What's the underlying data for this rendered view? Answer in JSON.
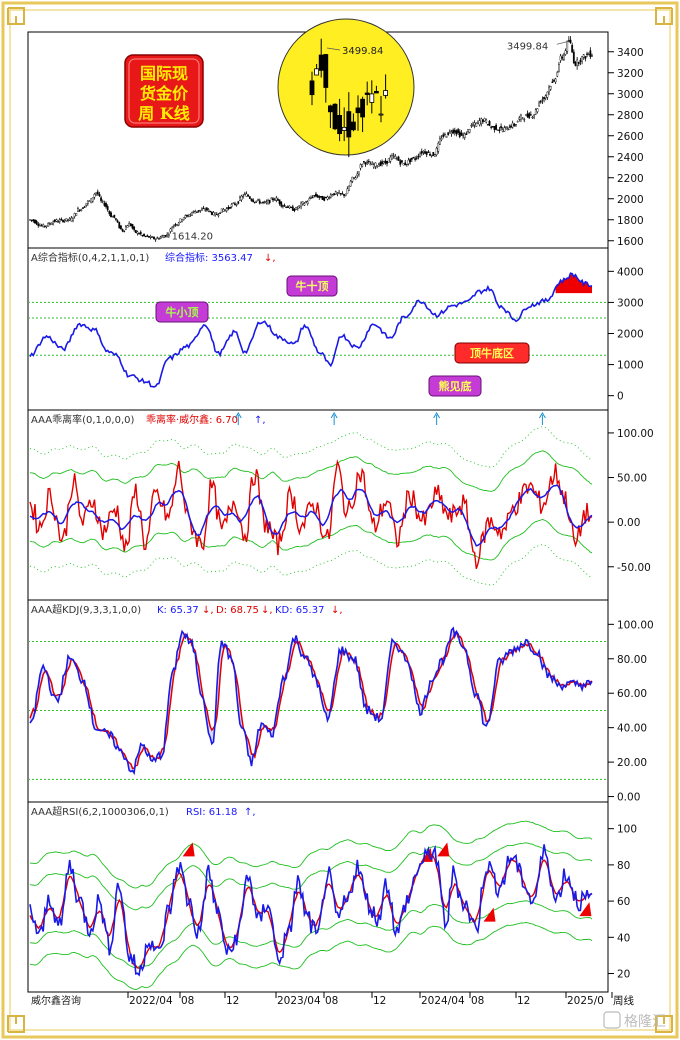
{
  "chart_data": [
    {
      "type": "candlestick",
      "badge": [
        "国际现",
        "货金价",
        "周 K线"
      ],
      "marker_high": "3499.84",
      "marker_low": "1614.20",
      "inset_label": "3499.84",
      "y_ticks": [
        "3400",
        "3200",
        "3000",
        "2800",
        "2600",
        "2400",
        "2200",
        "2000",
        "1800",
        "1600"
      ],
      "ylim": [
        1550,
        3550
      ],
      "anchors": [
        [
          0,
          1800
        ],
        [
          8,
          1740
        ],
        [
          16,
          1790
        ],
        [
          24,
          1800
        ],
        [
          30,
          1900
        ],
        [
          36,
          1975
        ],
        [
          40,
          2060
        ],
        [
          44,
          1960
        ],
        [
          50,
          1830
        ],
        [
          56,
          1700
        ],
        [
          60,
          1760
        ],
        [
          64,
          1680
        ],
        [
          70,
          1640
        ],
        [
          76,
          1620
        ],
        [
          82,
          1650
        ],
        [
          88,
          1760
        ],
        [
          94,
          1830
        ],
        [
          100,
          1880
        ],
        [
          106,
          1900
        ],
        [
          112,
          1850
        ],
        [
          118,
          1900
        ],
        [
          124,
          1950
        ],
        [
          130,
          2040
        ],
        [
          136,
          1980
        ],
        [
          142,
          1960
        ],
        [
          148,
          2000
        ],
        [
          154,
          1930
        ],
        [
          160,
          1900
        ],
        [
          166,
          1960
        ],
        [
          172,
          2030
        ],
        [
          178,
          2000
        ],
        [
          184,
          2050
        ],
        [
          190,
          2040
        ],
        [
          196,
          2200
        ],
        [
          202,
          2350
        ],
        [
          208,
          2320
        ],
        [
          214,
          2340
        ],
        [
          220,
          2400
        ],
        [
          226,
          2330
        ],
        [
          232,
          2380
        ],
        [
          238,
          2450
        ],
        [
          244,
          2420
        ],
        [
          250,
          2600
        ],
        [
          256,
          2650
        ],
        [
          262,
          2600
        ],
        [
          268,
          2700
        ],
        [
          274,
          2750
        ],
        [
          280,
          2680
        ],
        [
          286,
          2660
        ],
        [
          292,
          2700
        ],
        [
          298,
          2780
        ],
        [
          304,
          2800
        ],
        [
          310,
          2950
        ],
        [
          316,
          3100
        ],
        [
          322,
          3350
        ],
        [
          326,
          3499.84
        ],
        [
          330,
          3290
        ],
        [
          334,
          3340
        ],
        [
          338,
          3380
        ]
      ]
    },
    {
      "type": "line",
      "header_prefix": "A综合指标(0,4,2,1,1,0,1)",
      "header_value_label": "综合指标: 3563.47",
      "arrow": "↓,",
      "tags": [
        "牛十顶",
        "牛小顶",
        "顶牛底区",
        "熊见底"
      ],
      "y_ticks": [
        "4000",
        "3000",
        "2000",
        "1000",
        "0"
      ],
      "ylim": [
        -300,
        4300
      ],
      "anchors": [
        [
          0,
          1300
        ],
        [
          10,
          1900
        ],
        [
          20,
          1500
        ],
        [
          30,
          2300
        ],
        [
          40,
          2100
        ],
        [
          46,
          1450
        ],
        [
          52,
          1300
        ],
        [
          60,
          650
        ],
        [
          70,
          450
        ],
        [
          76,
          280
        ],
        [
          84,
          1200
        ],
        [
          96,
          1600
        ],
        [
          106,
          2300
        ],
        [
          114,
          1350
        ],
        [
          124,
          2050
        ],
        [
          130,
          1400
        ],
        [
          140,
          2400
        ],
        [
          152,
          1850
        ],
        [
          160,
          1650
        ],
        [
          166,
          2250
        ],
        [
          176,
          1350
        ],
        [
          182,
          950
        ],
        [
          188,
          1950
        ],
        [
          198,
          1550
        ],
        [
          208,
          2300
        ],
        [
          218,
          1850
        ],
        [
          226,
          2500
        ],
        [
          236,
          3050
        ],
        [
          246,
          2600
        ],
        [
          256,
          2900
        ],
        [
          264,
          3000
        ],
        [
          272,
          3350
        ],
        [
          278,
          3450
        ],
        [
          284,
          2900
        ],
        [
          294,
          2450
        ],
        [
          302,
          2900
        ],
        [
          312,
          3050
        ],
        [
          322,
          3700
        ],
        [
          328,
          3900
        ],
        [
          336,
          3600
        ],
        [
          340,
          3550
        ]
      ],
      "bands": [
        3000,
        2500,
        1300
      ]
    },
    {
      "type": "line",
      "header_prefix": "AAA乖离率(0,1,0,0,0)",
      "header_value_label": "乖离率·威尔鑫: 6.70",
      "arrow": "↑,",
      "y_ticks": [
        "100.00",
        "50.00",
        "0.00",
        "-50.00"
      ],
      "ylim": [
        -85,
        110
      ],
      "anchors": [
        [
          0,
          20
        ],
        [
          6,
          -5
        ],
        [
          12,
          30
        ],
        [
          20,
          -20
        ],
        [
          26,
          45
        ],
        [
          32,
          0
        ],
        [
          38,
          25
        ],
        [
          44,
          -10
        ],
        [
          52,
          15
        ],
        [
          58,
          -30
        ],
        [
          64,
          35
        ],
        [
          70,
          -25
        ],
        [
          76,
          30
        ],
        [
          84,
          5
        ],
        [
          90,
          60
        ],
        [
          96,
          0
        ],
        [
          104,
          -25
        ],
        [
          110,
          40
        ],
        [
          116,
          -10
        ],
        [
          124,
          25
        ],
        [
          130,
          -15
        ],
        [
          136,
          55
        ],
        [
          142,
          0
        ],
        [
          150,
          -25
        ],
        [
          158,
          30
        ],
        [
          164,
          -5
        ],
        [
          172,
          20
        ],
        [
          180,
          -20
        ],
        [
          186,
          60
        ],
        [
          192,
          10
        ],
        [
          200,
          55
        ],
        [
          208,
          -5
        ],
        [
          216,
          25
        ],
        [
          222,
          -20
        ],
        [
          230,
          30
        ],
        [
          238,
          0
        ],
        [
          246,
          30
        ],
        [
          254,
          5
        ],
        [
          262,
          20
        ],
        [
          270,
          -40
        ],
        [
          278,
          0
        ],
        [
          286,
          -10
        ],
        [
          294,
          20
        ],
        [
          302,
          40
        ],
        [
          310,
          20
        ],
        [
          318,
          55
        ],
        [
          324,
          25
        ],
        [
          330,
          -25
        ],
        [
          336,
          10
        ],
        [
          340,
          5
        ]
      ]
    },
    {
      "type": "line",
      "header_prefix": "AAA超KDJ(9,3,3,1,0,0)",
      "header_k_label": "K: 65.37",
      "header_d_label": "D: 68.75",
      "header_kd_label": "KD: 65.37",
      "arrow_k": "↓,",
      "arrow_d": "↓,",
      "arrow_kd": "↓,",
      "y_ticks": [
        "100.00",
        "80.00",
        "60.00",
        "40.00",
        "20.00",
        "0.00"
      ],
      "ylim": [
        -2,
        106
      ],
      "bands": [
        90,
        50,
        10
      ],
      "anchors": [
        [
          0,
          40
        ],
        [
          8,
          75
        ],
        [
          16,
          55
        ],
        [
          24,
          80
        ],
        [
          32,
          68
        ],
        [
          40,
          40
        ],
        [
          48,
          35
        ],
        [
          56,
          25
        ],
        [
          62,
          15
        ],
        [
          68,
          30
        ],
        [
          74,
          20
        ],
        [
          80,
          25
        ],
        [
          86,
          70
        ],
        [
          92,
          95
        ],
        [
          98,
          88
        ],
        [
          104,
          60
        ],
        [
          110,
          30
        ],
        [
          116,
          90
        ],
        [
          122,
          80
        ],
        [
          128,
          40
        ],
        [
          134,
          20
        ],
        [
          140,
          42
        ],
        [
          146,
          36
        ],
        [
          154,
          70
        ],
        [
          160,
          92
        ],
        [
          166,
          82
        ],
        [
          172,
          70
        ],
        [
          180,
          45
        ],
        [
          188,
          85
        ],
        [
          196,
          80
        ],
        [
          204,
          50
        ],
        [
          212,
          45
        ],
        [
          220,
          90
        ],
        [
          228,
          80
        ],
        [
          236,
          50
        ],
        [
          244,
          70
        ],
        [
          250,
          80
        ],
        [
          256,
          95
        ],
        [
          262,
          88
        ],
        [
          270,
          60
        ],
        [
          276,
          40
        ],
        [
          284,
          78
        ],
        [
          292,
          85
        ],
        [
          300,
          90
        ],
        [
          306,
          85
        ],
        [
          314,
          70
        ],
        [
          320,
          65
        ],
        [
          328,
          65
        ]
      ]
    },
    {
      "type": "line",
      "header_prefix": "AAA超RSI(6,2,1000306,0,1)",
      "header_value_label": "RSI: 61.18",
      "arrow": "↑,",
      "y_ticks": [
        "100",
        "80",
        "60",
        "40",
        "20"
      ],
      "ylim": [
        12,
        107
      ],
      "x_ticks": [
        "2022/04",
        "08",
        "12",
        "2023/04",
        "08",
        "12",
        "2024/04",
        "08",
        "12",
        "2025/0",
        "周线"
      ],
      "footer_left": "威尔鑫咨询",
      "watermark": "格隆汇",
      "anchors": [
        [
          0,
          55
        ],
        [
          6,
          40
        ],
        [
          12,
          62
        ],
        [
          18,
          45
        ],
        [
          24,
          80
        ],
        [
          30,
          60
        ],
        [
          36,
          45
        ],
        [
          42,
          60
        ],
        [
          48,
          35
        ],
        [
          54,
          70
        ],
        [
          60,
          30
        ],
        [
          66,
          20
        ],
        [
          72,
          40
        ],
        [
          78,
          30
        ],
        [
          84,
          55
        ],
        [
          90,
          80
        ],
        [
          96,
          60
        ],
        [
          102,
          42
        ],
        [
          108,
          75
        ],
        [
          114,
          52
        ],
        [
          120,
          30
        ],
        [
          126,
          42
        ],
        [
          132,
          75
        ],
        [
          138,
          48
        ],
        [
          144,
          60
        ],
        [
          150,
          28
        ],
        [
          156,
          40
        ],
        [
          162,
          70
        ],
        [
          168,
          50
        ],
        [
          174,
          40
        ],
        [
          180,
          75
        ],
        [
          186,
          50
        ],
        [
          192,
          60
        ],
        [
          198,
          80
        ],
        [
          204,
          60
        ],
        [
          210,
          50
        ],
        [
          216,
          70
        ],
        [
          222,
          42
        ],
        [
          228,
          60
        ],
        [
          236,
          80
        ],
        [
          244,
          88
        ],
        [
          252,
          48
        ],
        [
          256,
          75
        ],
        [
          262,
          60
        ],
        [
          270,
          45
        ],
        [
          276,
          80
        ],
        [
          284,
          68
        ],
        [
          292,
          85
        ],
        [
          298,
          72
        ],
        [
          304,
          60
        ],
        [
          312,
          88
        ],
        [
          318,
          60
        ],
        [
          324,
          75
        ],
        [
          332,
          60
        ],
        [
          340,
          61
        ]
      ]
    }
  ]
}
